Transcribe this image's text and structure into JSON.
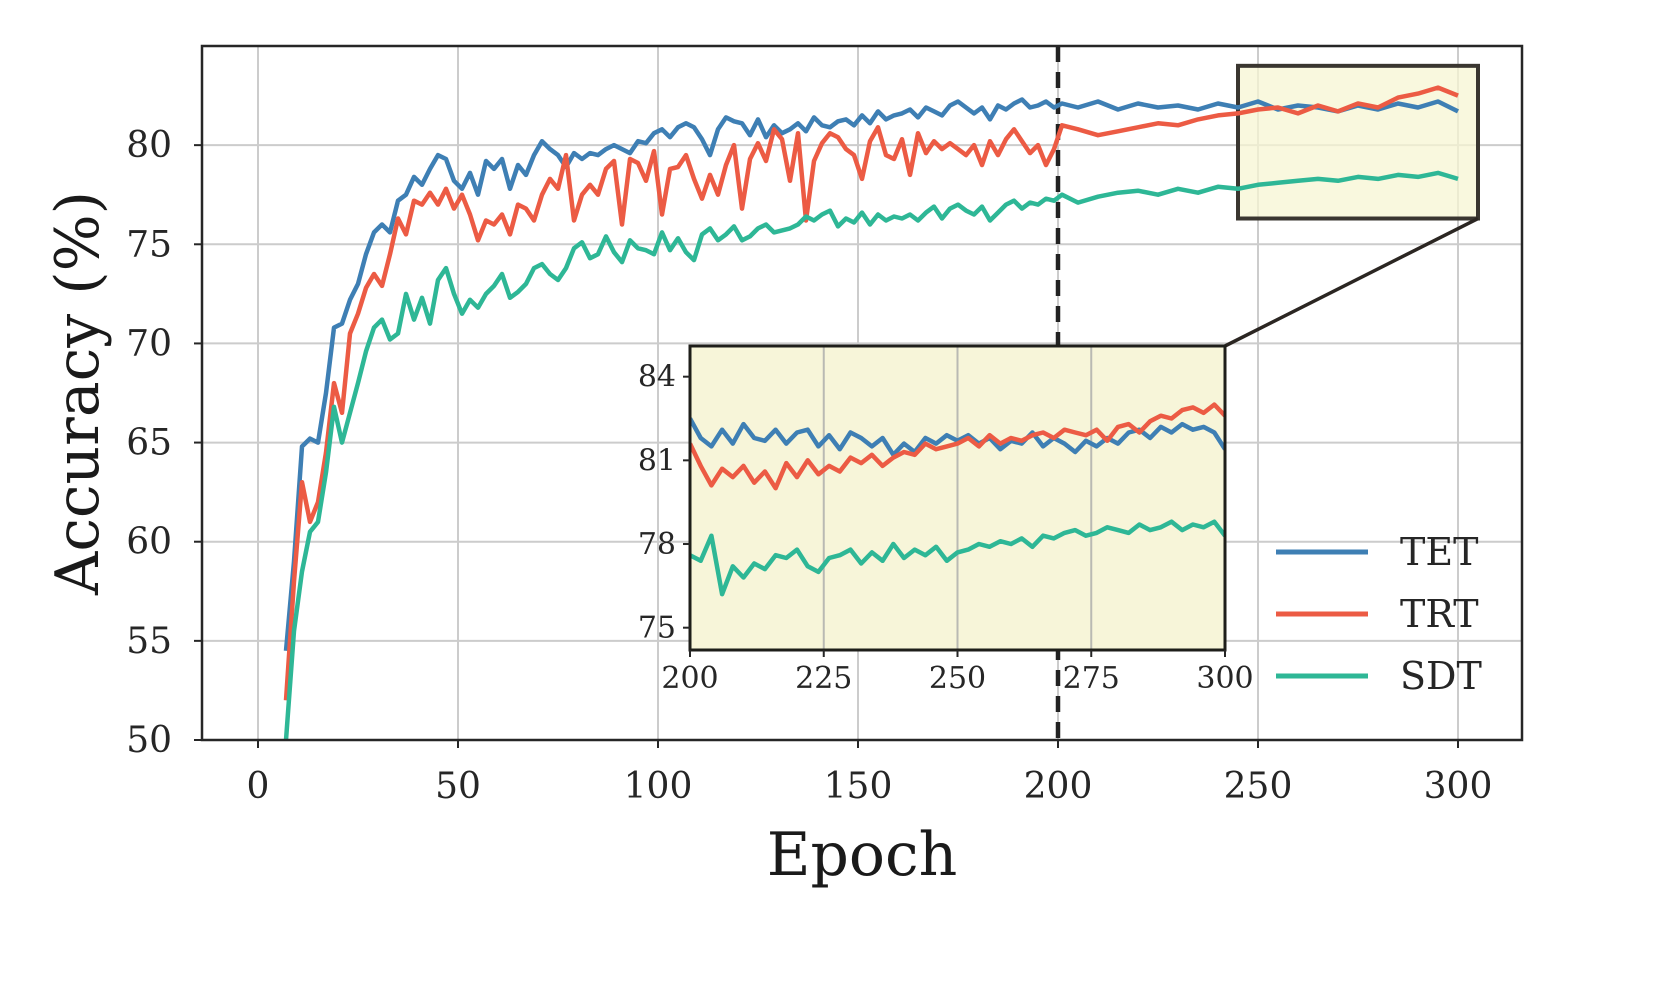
{
  "chart_data": [
    {
      "type": "line",
      "xlabel": "Epoch",
      "ylabel": "Accuracy (%)",
      "xlim": [
        -14,
        316
      ],
      "ylim": [
        50,
        85
      ],
      "xticks": [
        "0",
        "50",
        "100",
        "150",
        "200",
        "250",
        "300"
      ],
      "yticks": [
        "50",
        "55",
        "60",
        "65",
        "70",
        "75",
        "80"
      ],
      "grid": true,
      "legend_position": "lower-right",
      "vertical_marker_x": 200,
      "zoom_box": {
        "x": [
          245,
          305
        ],
        "y": [
          76.3,
          84
        ]
      },
      "series": [
        {
          "name": "TET",
          "color": "#3e7fb4",
          "x": [
            7,
            9,
            11,
            13,
            15,
            17,
            19,
            21,
            23,
            25,
            27,
            29,
            31,
            33,
            35,
            37,
            39,
            41,
            43,
            45,
            47,
            49,
            51,
            53,
            55,
            57,
            59,
            61,
            63,
            65,
            67,
            69,
            71,
            73,
            75,
            77,
            79,
            81,
            83,
            85,
            87,
            89,
            91,
            93,
            95,
            97,
            99,
            101,
            103,
            105,
            107,
            109,
            111,
            113,
            115,
            117,
            119,
            121,
            123,
            125,
            127,
            129,
            131,
            133,
            135,
            137,
            139,
            141,
            143,
            145,
            147,
            149,
            151,
            153,
            155,
            157,
            159,
            161,
            163,
            165,
            167,
            169,
            171,
            173,
            175,
            177,
            179,
            181,
            183,
            185,
            187,
            189,
            191,
            193,
            195,
            197,
            199,
            201,
            205,
            210,
            215,
            220,
            225,
            230,
            235,
            240,
            245,
            250,
            255,
            260,
            265,
            270,
            275,
            280,
            285,
            290,
            295,
            300
          ],
          "y": [
            54.5,
            59,
            64.8,
            65.2,
            65,
            67.5,
            70.8,
            71,
            72.2,
            73,
            74.5,
            75.6,
            76,
            75.6,
            77.2,
            77.5,
            78.4,
            78,
            78.8,
            79.5,
            79.3,
            78.2,
            77.8,
            78.6,
            77.5,
            79.2,
            78.8,
            79.3,
            77.8,
            79,
            78.5,
            79.5,
            80.2,
            79.8,
            79.5,
            78.9,
            79.6,
            79.3,
            79.6,
            79.5,
            79.8,
            80,
            79.8,
            79.6,
            80.2,
            80.1,
            80.6,
            80.8,
            80.4,
            80.9,
            81.1,
            80.9,
            80.3,
            79.5,
            80.8,
            81.4,
            81.2,
            81.1,
            80.5,
            81.3,
            80.4,
            81,
            80.6,
            80.8,
            81.1,
            80.7,
            81.4,
            81,
            80.9,
            81.2,
            81.3,
            81,
            81.5,
            81.1,
            81.7,
            81.3,
            81.5,
            81.6,
            81.8,
            81.4,
            81.9,
            81.7,
            81.5,
            82,
            82.2,
            81.9,
            81.6,
            81.9,
            81.3,
            82,
            81.8,
            82.1,
            82.3,
            81.9,
            82,
            82.2,
            81.9,
            82.1,
            81.9,
            82.2,
            81.8,
            82.1,
            81.9,
            82,
            81.8,
            82.1,
            81.9,
            82.2,
            81.8,
            82,
            81.9,
            81.7,
            82,
            81.8,
            82.1,
            81.9,
            82.2,
            81.7
          ]
        },
        {
          "name": "TRT",
          "color": "#ec5b44",
          "x": [
            7,
            9,
            11,
            13,
            15,
            17,
            19,
            21,
            23,
            25,
            27,
            29,
            31,
            33,
            35,
            37,
            39,
            41,
            43,
            45,
            47,
            49,
            51,
            53,
            55,
            57,
            59,
            61,
            63,
            65,
            67,
            69,
            71,
            73,
            75,
            77,
            79,
            81,
            83,
            85,
            87,
            89,
            91,
            93,
            95,
            97,
            99,
            101,
            103,
            105,
            107,
            109,
            111,
            113,
            115,
            117,
            119,
            121,
            123,
            125,
            127,
            129,
            131,
            133,
            135,
            137,
            139,
            141,
            143,
            145,
            147,
            149,
            151,
            153,
            155,
            157,
            159,
            161,
            163,
            165,
            167,
            169,
            171,
            173,
            175,
            177,
            179,
            181,
            183,
            185,
            187,
            189,
            191,
            193,
            195,
            197,
            199,
            201,
            205,
            210,
            215,
            220,
            225,
            230,
            235,
            240,
            245,
            250,
            255,
            260,
            265,
            270,
            275,
            280,
            285,
            290,
            295,
            300
          ],
          "y": [
            52,
            58,
            63,
            61,
            62,
            64.5,
            68,
            66.5,
            70.5,
            71.5,
            72.8,
            73.5,
            72.9,
            74.5,
            76.3,
            75.5,
            77.2,
            77,
            77.6,
            77,
            77.8,
            76.8,
            77.5,
            76.5,
            75.2,
            76.2,
            76,
            76.5,
            75.5,
            77,
            76.8,
            76.2,
            77.5,
            78.3,
            77.8,
            79.5,
            76.2,
            77.5,
            78,
            77.5,
            78.8,
            79.2,
            76,
            79.3,
            79.1,
            78.2,
            79.7,
            76.5,
            78.8,
            78.9,
            79.5,
            78.3,
            77.3,
            78.5,
            77.5,
            79,
            80,
            76.8,
            79.3,
            80.1,
            79.2,
            80.8,
            80.3,
            78.2,
            80.6,
            76.2,
            79.2,
            80.1,
            80.6,
            80.4,
            79.8,
            79.5,
            78.3,
            80.2,
            80.9,
            79.5,
            79.3,
            80.3,
            78.5,
            80.6,
            79.6,
            80.2,
            79.8,
            80.1,
            79.8,
            79.5,
            80,
            79,
            80.2,
            79.5,
            80.3,
            80.8,
            80.2,
            79.6,
            80,
            79,
            79.8,
            81,
            80.8,
            80.5,
            80.7,
            80.9,
            81.1,
            81,
            81.3,
            81.5,
            81.6,
            81.8,
            81.9,
            81.6,
            82,
            81.7,
            82.1,
            81.9,
            82.4,
            82.6,
            82.9,
            82.5
          ]
        },
        {
          "name": "SDT",
          "color": "#2eb796",
          "x": [
            7,
            9,
            11,
            13,
            15,
            17,
            19,
            21,
            23,
            25,
            27,
            29,
            31,
            33,
            35,
            37,
            39,
            41,
            43,
            45,
            47,
            49,
            51,
            53,
            55,
            57,
            59,
            61,
            63,
            65,
            67,
            69,
            71,
            73,
            75,
            77,
            79,
            81,
            83,
            85,
            87,
            89,
            91,
            93,
            95,
            97,
            99,
            101,
            103,
            105,
            107,
            109,
            111,
            113,
            115,
            117,
            119,
            121,
            123,
            125,
            127,
            129,
            131,
            133,
            135,
            137,
            139,
            141,
            143,
            145,
            147,
            149,
            151,
            153,
            155,
            157,
            159,
            161,
            163,
            165,
            167,
            169,
            171,
            173,
            175,
            177,
            179,
            181,
            183,
            185,
            187,
            189,
            191,
            193,
            195,
            197,
            199,
            201,
            205,
            210,
            215,
            220,
            225,
            230,
            235,
            240,
            245,
            250,
            255,
            260,
            265,
            270,
            275,
            280,
            285,
            290,
            295,
            300
          ],
          "y": [
            50,
            55.5,
            58.5,
            60.5,
            61,
            63.5,
            66.8,
            65,
            66.5,
            68,
            69.6,
            70.8,
            71.2,
            70.2,
            70.5,
            72.5,
            71.2,
            72.3,
            71,
            73.2,
            73.8,
            72.5,
            71.5,
            72.2,
            71.8,
            72.5,
            72.9,
            73.5,
            72.3,
            72.6,
            73,
            73.8,
            74,
            73.5,
            73.2,
            73.8,
            74.8,
            75.1,
            74.3,
            74.5,
            75.4,
            74.6,
            74.1,
            75.2,
            74.8,
            74.7,
            74.5,
            75.6,
            74.7,
            75.3,
            74.6,
            74.2,
            75.5,
            75.8,
            75.2,
            75.5,
            75.9,
            75.2,
            75.4,
            75.8,
            76,
            75.6,
            75.7,
            75.8,
            76,
            76.4,
            76.2,
            76.5,
            76.7,
            75.9,
            76.3,
            76.1,
            76.6,
            76,
            76.5,
            76.2,
            76.4,
            76.3,
            76.5,
            76.2,
            76.6,
            76.9,
            76.3,
            76.8,
            77,
            76.7,
            76.5,
            76.9,
            76.2,
            76.6,
            77,
            77.2,
            76.8,
            77.1,
            77,
            77.3,
            77.2,
            77.5,
            77.1,
            77.4,
            77.6,
            77.7,
            77.5,
            77.8,
            77.6,
            77.9,
            77.8,
            78,
            78.1,
            78.2,
            78.3,
            78.2,
            78.4,
            78.3,
            78.5,
            78.4,
            78.6,
            78.3
          ]
        }
      ]
    },
    {
      "type": "line",
      "inset": true,
      "xlim": [
        200,
        300
      ],
      "ylim": [
        74.2,
        85.1
      ],
      "xticks": [
        "200",
        "225",
        "250",
        "275",
        "300"
      ],
      "yticks": [
        "75",
        "78",
        "81",
        "84"
      ],
      "grid": "vertical",
      "series": [
        {
          "name": "TET",
          "color": "#3e7fb4",
          "x": [
            200,
            202,
            204,
            206,
            208,
            210,
            212,
            214,
            216,
            218,
            220,
            222,
            224,
            226,
            228,
            230,
            232,
            234,
            236,
            238,
            240,
            242,
            244,
            246,
            248,
            250,
            252,
            254,
            256,
            258,
            260,
            262,
            264,
            266,
            268,
            270,
            272,
            274,
            276,
            278,
            280,
            282,
            284,
            286,
            288,
            290,
            292,
            294,
            296,
            298,
            300
          ],
          "y": [
            82.5,
            81.8,
            81.5,
            82.1,
            81.6,
            82.3,
            81.8,
            81.7,
            82.1,
            81.6,
            82,
            82.1,
            81.5,
            81.9,
            81.4,
            82,
            81.8,
            81.5,
            81.8,
            81.2,
            81.6,
            81.3,
            81.8,
            81.6,
            81.9,
            81.7,
            81.9,
            81.6,
            81.8,
            81.4,
            81.7,
            81.6,
            82,
            81.5,
            81.8,
            81.6,
            81.3,
            81.7,
            81.5,
            81.8,
            81.6,
            82,
            82.1,
            81.8,
            82.2,
            82,
            82.3,
            82.1,
            82.2,
            82,
            81.4
          ]
        },
        {
          "name": "TRT",
          "color": "#ec5b44",
          "x": [
            200,
            202,
            204,
            206,
            208,
            210,
            212,
            214,
            216,
            218,
            220,
            222,
            224,
            226,
            228,
            230,
            232,
            234,
            236,
            238,
            240,
            242,
            244,
            246,
            248,
            250,
            252,
            254,
            256,
            258,
            260,
            262,
            264,
            266,
            268,
            270,
            272,
            274,
            276,
            278,
            280,
            282,
            284,
            286,
            288,
            290,
            292,
            294,
            296,
            298,
            300
          ],
          "y": [
            81.6,
            80.8,
            80.1,
            80.7,
            80.4,
            80.8,
            80.2,
            80.6,
            80,
            80.9,
            80.4,
            81,
            80.5,
            80.8,
            80.6,
            81.1,
            80.9,
            81.2,
            80.8,
            81.1,
            81.3,
            81.2,
            81.6,
            81.4,
            81.5,
            81.6,
            81.8,
            81.5,
            81.9,
            81.6,
            81.8,
            81.7,
            81.9,
            82,
            81.8,
            82.1,
            82,
            81.9,
            82.1,
            81.7,
            82.2,
            82.3,
            82,
            82.4,
            82.6,
            82.5,
            82.8,
            82.9,
            82.7,
            83,
            82.6
          ]
        },
        {
          "name": "SDT",
          "color": "#2eb796",
          "x": [
            200,
            202,
            204,
            206,
            208,
            210,
            212,
            214,
            216,
            218,
            220,
            222,
            224,
            226,
            228,
            230,
            232,
            234,
            236,
            238,
            240,
            242,
            244,
            246,
            248,
            250,
            252,
            254,
            256,
            258,
            260,
            262,
            264,
            266,
            268,
            270,
            272,
            274,
            276,
            278,
            280,
            282,
            284,
            286,
            288,
            290,
            292,
            294,
            296,
            298,
            300
          ],
          "y": [
            77.6,
            77.4,
            78.3,
            76.2,
            77.2,
            76.8,
            77.3,
            77.1,
            77.6,
            77.5,
            77.8,
            77.2,
            77,
            77.5,
            77.6,
            77.8,
            77.3,
            77.7,
            77.4,
            78,
            77.5,
            77.8,
            77.6,
            77.9,
            77.4,
            77.7,
            77.8,
            78,
            77.9,
            78.1,
            78,
            78.2,
            77.9,
            78.3,
            78.2,
            78.4,
            78.5,
            78.3,
            78.4,
            78.6,
            78.5,
            78.4,
            78.7,
            78.5,
            78.6,
            78.8,
            78.5,
            78.7,
            78.6,
            78.8,
            78.3
          ]
        }
      ]
    }
  ]
}
